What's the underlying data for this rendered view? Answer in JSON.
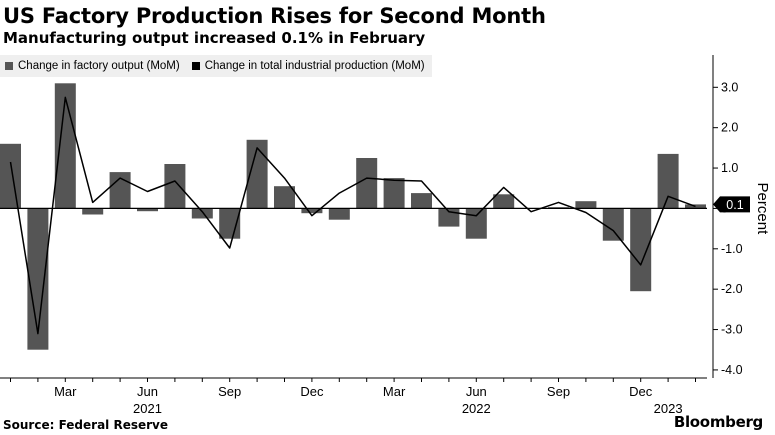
{
  "header": {
    "title": "US Factory Production Rises for Second Month",
    "subtitle": "Manufacturing output increased 0.1% in February"
  },
  "footer": {
    "source": "Source: Federal Reserve",
    "brand": "Bloomberg"
  },
  "chart_data": {
    "type": "bar",
    "x": [
      "2021-01",
      "2021-02",
      "2021-03",
      "2021-04",
      "2021-05",
      "2021-06",
      "2021-07",
      "2021-08",
      "2021-09",
      "2021-10",
      "2021-11",
      "2021-12",
      "2022-01",
      "2022-02",
      "2022-03",
      "2022-04",
      "2022-05",
      "2022-06",
      "2022-07",
      "2022-08",
      "2022-09",
      "2022-10",
      "2022-11",
      "2022-12",
      "2023-01",
      "2023-02"
    ],
    "series": [
      {
        "name": "Change in factory output (MoM)",
        "type": "bar",
        "color": "#555555",
        "values": [
          1.6,
          -3.5,
          3.1,
          -0.15,
          0.9,
          -0.07,
          1.1,
          -0.25,
          -0.75,
          1.7,
          0.55,
          -0.12,
          -0.28,
          1.25,
          0.75,
          0.38,
          -0.45,
          -0.75,
          0.35,
          0.0,
          0.03,
          0.18,
          -0.8,
          -2.05,
          1.35,
          0.1
        ]
      },
      {
        "name": "Change in total industrial production (MoM)",
        "type": "line",
        "color": "#000000",
        "values": [
          1.15,
          -3.1,
          2.75,
          0.15,
          0.75,
          0.42,
          0.68,
          -0.08,
          -0.98,
          1.5,
          0.75,
          -0.18,
          0.38,
          0.75,
          0.7,
          0.68,
          -0.08,
          -0.18,
          0.52,
          -0.08,
          0.15,
          -0.1,
          -0.55,
          -1.4,
          0.3,
          0.05
        ]
      }
    ],
    "x_tick_labels": [
      {
        "x": "2021-03",
        "label": "Mar"
      },
      {
        "x": "2021-06",
        "label": "Jun"
      },
      {
        "x": "2021-09",
        "label": "Sep"
      },
      {
        "x": "2021-12",
        "label": "Dec"
      },
      {
        "x": "2022-03",
        "label": "Mar"
      },
      {
        "x": "2022-06",
        "label": "Jun"
      },
      {
        "x": "2022-09",
        "label": "Sep"
      },
      {
        "x": "2022-12",
        "label": "Dec"
      }
    ],
    "year_labels": [
      {
        "x": "2021-06",
        "label": "2021"
      },
      {
        "x": "2022-06",
        "label": "2022"
      },
      {
        "x": "2023-01",
        "label": "2023"
      }
    ],
    "ylim": [
      -4.2,
      3.8
    ],
    "yticks": [
      3,
      2,
      1,
      0,
      -1,
      -2,
      -3,
      -4
    ],
    "ytick_labels": [
      "3.0",
      "2.0",
      "1.0",
      "0",
      "-1.0",
      "-2.0",
      "-3.0",
      "-4.0"
    ],
    "ylabel": "Percent",
    "annotation": {
      "value": 0.1,
      "label": "0.1"
    },
    "grid": false,
    "legend_position": "top-left"
  }
}
